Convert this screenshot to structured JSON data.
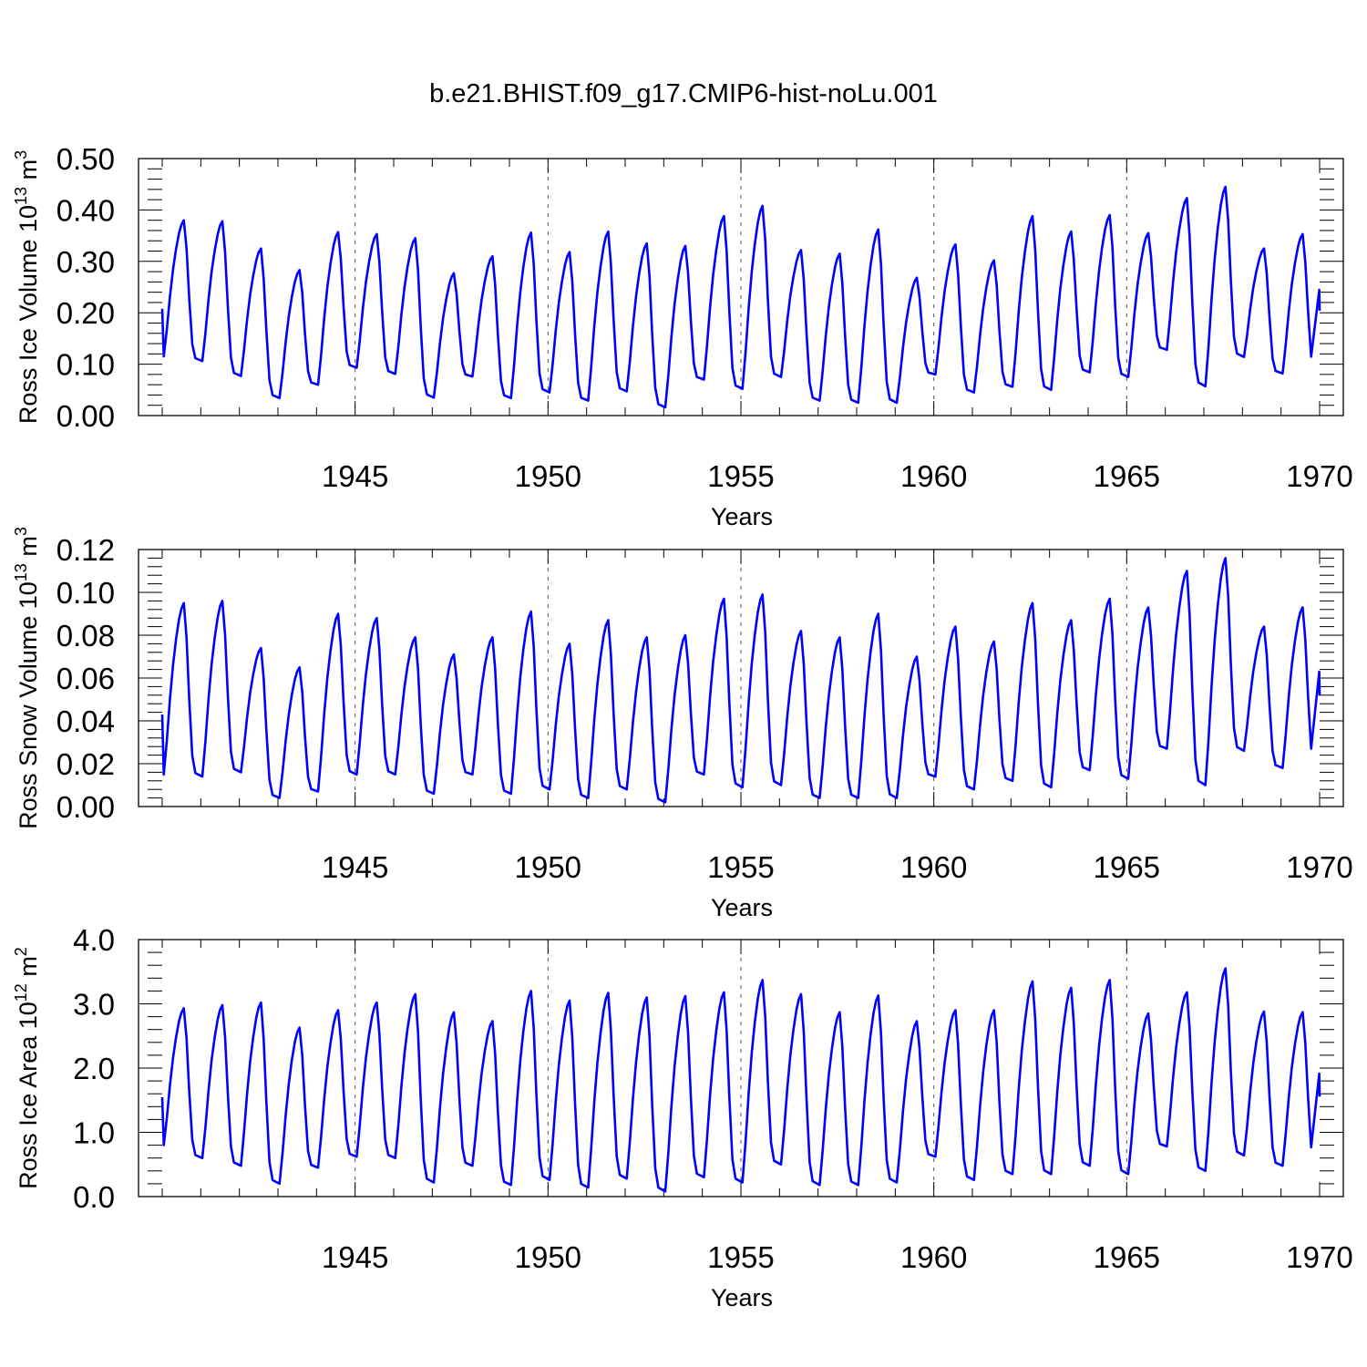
{
  "figure": {
    "title": "b.e21.BHIST.f09_g17.CMIP6-hist-noLu.001"
  },
  "line_color": "#0000ff",
  "chart_data": [
    {
      "type": "line",
      "ylabel_main": "Ross Ice Volume 10",
      "ylabel_exp": "13",
      "ylabel_unit": " m",
      "ylabel_unit_exp": "3",
      "xlabel": "Years",
      "xlim": [
        1940.0,
        1970.0
      ],
      "ylim": [
        0.0,
        0.5
      ],
      "x_ticks": [
        1945,
        1950,
        1955,
        1960,
        1965,
        1970
      ],
      "y_ticks": [
        "0.00",
        "0.10",
        "0.20",
        "0.30",
        "0.40",
        "0.50"
      ],
      "series": [
        {
          "peaks": [
            0.38,
            0.378,
            0.325,
            0.283,
            0.357,
            0.353,
            0.345,
            0.277,
            0.31,
            0.356,
            0.318,
            0.358,
            0.335,
            0.33,
            0.388,
            0.408,
            0.322,
            0.315,
            0.362,
            0.268,
            0.333,
            0.302,
            0.388,
            0.358,
            0.39,
            0.355,
            0.423,
            0.445,
            0.325,
            0.353
          ],
          "troughs": [
            0.115,
            0.106,
            0.077,
            0.034,
            0.06,
            0.093,
            0.081,
            0.035,
            0.076,
            0.034,
            0.045,
            0.029,
            0.047,
            0.016,
            0.07,
            0.052,
            0.075,
            0.029,
            0.025,
            0.025,
            0.08,
            0.045,
            0.056,
            0.05,
            0.084,
            0.075,
            0.128,
            0.057,
            0.114,
            0.082
          ]
        }
      ]
    },
    {
      "type": "line",
      "ylabel_main": "Ross Snow Volume 10",
      "ylabel_exp": "13",
      "ylabel_unit": " m",
      "ylabel_unit_exp": "3",
      "xlabel": "Years",
      "xlim": [
        1940.0,
        1970.0
      ],
      "ylim": [
        0.0,
        0.12
      ],
      "x_ticks": [
        1945,
        1950,
        1955,
        1960,
        1965,
        1970
      ],
      "y_ticks": [
        "0.00",
        "0.02",
        "0.04",
        "0.06",
        "0.08",
        "0.10",
        "0.12"
      ],
      "series": [
        {
          "peaks": [
            0.095,
            0.096,
            0.074,
            0.065,
            0.09,
            0.088,
            0.079,
            0.071,
            0.079,
            0.091,
            0.076,
            0.087,
            0.079,
            0.08,
            0.097,
            0.099,
            0.082,
            0.079,
            0.09,
            0.07,
            0.084,
            0.077,
            0.095,
            0.087,
            0.097,
            0.093,
            0.11,
            0.116,
            0.084,
            0.093
          ],
          "troughs": [
            0.015,
            0.014,
            0.016,
            0.004,
            0.007,
            0.015,
            0.015,
            0.006,
            0.015,
            0.006,
            0.008,
            0.004,
            0.008,
            0.002,
            0.015,
            0.009,
            0.01,
            0.004,
            0.004,
            0.004,
            0.014,
            0.008,
            0.012,
            0.009,
            0.017,
            0.013,
            0.027,
            0.01,
            0.026,
            0.018
          ]
        }
      ]
    },
    {
      "type": "line",
      "ylabel_main": "Ross Ice Area 10",
      "ylabel_exp": "12",
      "ylabel_unit": " m",
      "ylabel_unit_exp": "2",
      "xlabel": "Years",
      "xlim": [
        1940.0,
        1970.0
      ],
      "ylim": [
        0.0,
        4.0
      ],
      "x_ticks": [
        1945,
        1950,
        1955,
        1960,
        1965,
        1970
      ],
      "y_ticks": [
        "0.0",
        "1.0",
        "2.0",
        "3.0",
        "4.0"
      ],
      "series": [
        {
          "peaks": [
            2.93,
            2.98,
            3.02,
            2.63,
            2.9,
            3.02,
            3.15,
            2.87,
            2.73,
            3.2,
            3.05,
            3.17,
            3.1,
            3.12,
            3.18,
            3.37,
            3.15,
            2.87,
            3.13,
            2.73,
            2.9,
            2.9,
            3.35,
            3.25,
            3.37,
            2.85,
            3.18,
            3.55,
            2.88,
            2.87
          ],
          "troughs": [
            0.8,
            0.6,
            0.48,
            0.2,
            0.45,
            0.62,
            0.6,
            0.22,
            0.48,
            0.18,
            0.26,
            0.14,
            0.28,
            0.08,
            0.3,
            0.22,
            0.5,
            0.18,
            0.18,
            0.22,
            0.62,
            0.26,
            0.35,
            0.35,
            0.48,
            0.35,
            0.78,
            0.4,
            0.64,
            0.48
          ]
        }
      ]
    }
  ]
}
